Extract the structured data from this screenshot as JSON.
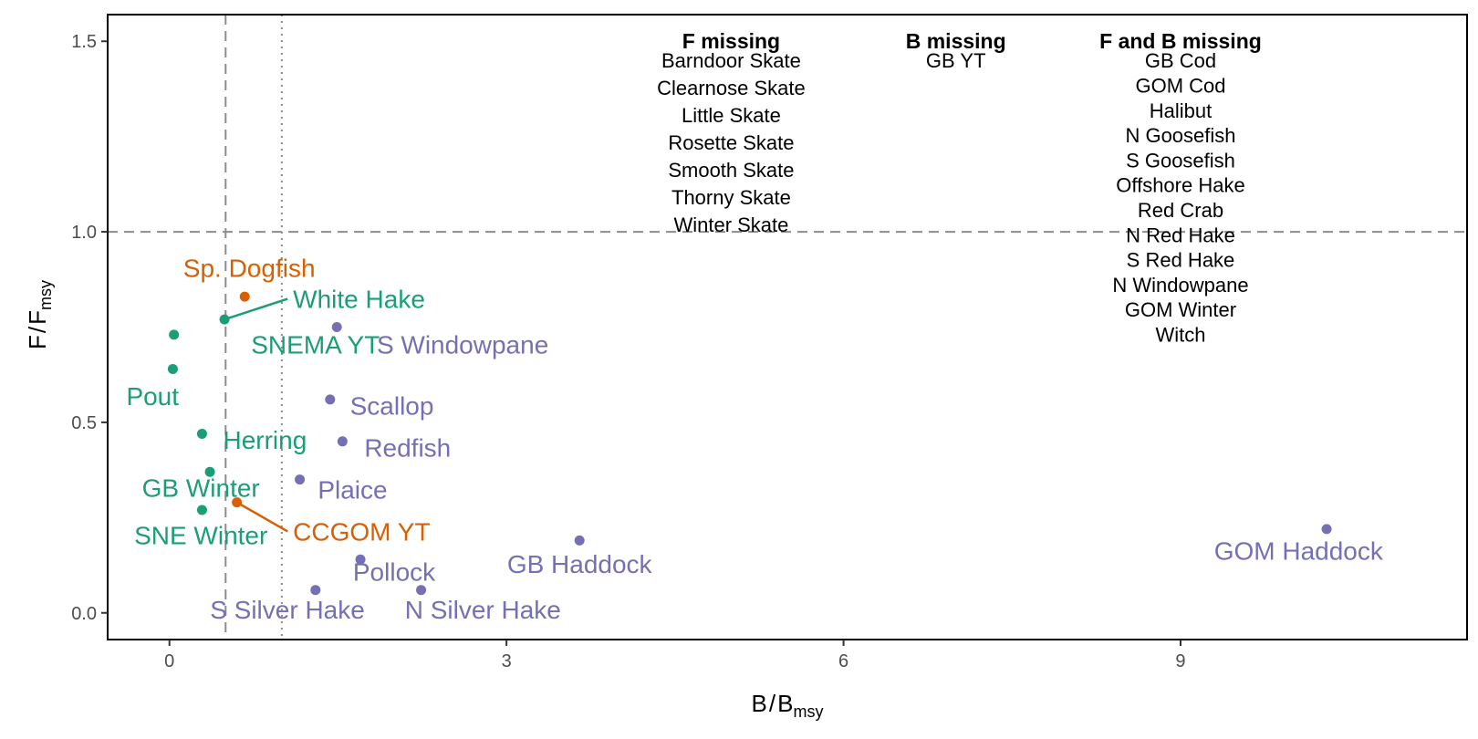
{
  "chart_data": {
    "type": "scatter",
    "xlabel": {
      "main": "B",
      "slash": "/",
      "base": "B",
      "sub": "msy"
    },
    "ylabel": {
      "main": "F",
      "slash": "/",
      "base": "F",
      "sub": "msy"
    },
    "xlim": [
      -0.55,
      11.55
    ],
    "ylim": [
      -0.07,
      1.57
    ],
    "xticks": [
      0,
      3,
      6,
      9
    ],
    "xtick_labels": [
      "0",
      "3",
      "6",
      "9"
    ],
    "yticks": [
      0.0,
      0.5,
      1.0,
      1.5
    ],
    "ytick_labels": [
      "0.0",
      "0.5",
      "1.0",
      "1.5"
    ],
    "grid": false,
    "legend": "none",
    "reference_lines": [
      {
        "axis": "x",
        "value": 0.5,
        "style": "dashed",
        "color": "#8c8c8c"
      },
      {
        "axis": "x",
        "value": 1.0,
        "style": "dotted",
        "color": "#8c8c8c"
      },
      {
        "axis": "y",
        "value": 1.0,
        "style": "dashed",
        "color": "#8c8c8c"
      }
    ],
    "group_colors": {
      "green": "#1b9e77",
      "orange": "#d95f02",
      "purple": "#7570b3"
    },
    "points": [
      {
        "name": "Sp. Dogfish",
        "x": 0.67,
        "y": 0.83,
        "group": "orange",
        "label_x": 0.71,
        "label_y": 0.882,
        "anchor": "middle",
        "leader": false
      },
      {
        "name": "White Hake",
        "x": 0.49,
        "y": 0.77,
        "group": "green",
        "label_x": 1.1,
        "label_y": 0.8,
        "anchor": "start",
        "leader": true
      },
      {
        "name": "SNEMA YT",
        "x": 0.04,
        "y": 0.73,
        "group": "green",
        "label_x": 1.3,
        "label_y": 0.68,
        "anchor": "middle",
        "leader": false
      },
      {
        "name": "Pout",
        "x": 0.03,
        "y": 0.64,
        "group": "green",
        "label_x": -0.15,
        "label_y": 0.545,
        "anchor": "middle",
        "leader": false
      },
      {
        "name": "Herring",
        "x": 0.29,
        "y": 0.47,
        "group": "green",
        "label_x": 0.85,
        "label_y": 0.43,
        "anchor": "middle",
        "leader": false
      },
      {
        "name": "GB Winter",
        "x": 0.36,
        "y": 0.37,
        "group": "green",
        "label_x": 0.28,
        "label_y": 0.305,
        "anchor": "middle",
        "leader": false
      },
      {
        "name": "SNE Winter",
        "x": 0.29,
        "y": 0.27,
        "group": "green",
        "label_x": 0.28,
        "label_y": 0.18,
        "anchor": "middle",
        "leader": false
      },
      {
        "name": "CCGOM YT",
        "x": 0.6,
        "y": 0.29,
        "group": "orange",
        "label_x": 1.1,
        "label_y": 0.19,
        "anchor": "start",
        "leader": true
      },
      {
        "name": "S Windowpane",
        "x": 1.49,
        "y": 0.75,
        "group": "purple",
        "label_x": 2.61,
        "label_y": 0.68,
        "anchor": "middle",
        "leader": false
      },
      {
        "name": "Scallop",
        "x": 1.43,
        "y": 0.56,
        "group": "purple",
        "label_x": 1.98,
        "label_y": 0.52,
        "anchor": "middle",
        "leader": false
      },
      {
        "name": "Redfish",
        "x": 1.54,
        "y": 0.45,
        "group": "purple",
        "label_x": 2.12,
        "label_y": 0.41,
        "anchor": "middle",
        "leader": false
      },
      {
        "name": "Plaice",
        "x": 1.16,
        "y": 0.35,
        "group": "purple",
        "label_x": 1.63,
        "label_y": 0.3,
        "anchor": "middle",
        "leader": false
      },
      {
        "name": "GB Haddock",
        "x": 3.65,
        "y": 0.19,
        "group": "purple",
        "label_x": 3.65,
        "label_y": 0.105,
        "anchor": "middle",
        "leader": false
      },
      {
        "name": "Pollock",
        "x": 1.7,
        "y": 0.14,
        "group": "purple",
        "label_x": 2.0,
        "label_y": 0.085,
        "anchor": "middle",
        "leader": false
      },
      {
        "name": "S Silver Hake",
        "x": 1.3,
        "y": 0.06,
        "group": "purple",
        "label_x": 1.05,
        "label_y": -0.015,
        "anchor": "middle",
        "leader": false
      },
      {
        "name": "N Silver Hake",
        "x": 2.24,
        "y": 0.06,
        "group": "purple",
        "label_x": 2.79,
        "label_y": -0.015,
        "anchor": "middle",
        "leader": false
      },
      {
        "name": "GOM Haddock",
        "x": 10.3,
        "y": 0.22,
        "group": "purple",
        "label_x": 10.05,
        "label_y": 0.14,
        "anchor": "middle",
        "leader": false
      }
    ],
    "tables": [
      {
        "title": "F missing",
        "x": 5.0,
        "items": [
          "Barndoor Skate",
          "Clearnose Skate",
          "Little Skate",
          "Rosette Skate",
          "Smooth Skate",
          "Thorny Skate",
          "Winter Skate"
        ]
      },
      {
        "title": "B missing",
        "x": 7.0,
        "items": [
          "GB YT"
        ]
      },
      {
        "title": "F and B missing",
        "x": 9.0,
        "items": [
          "GB Cod",
          "GOM Cod",
          "Halibut",
          "N Goosefish",
          "S Goosefish",
          "Offshore Hake",
          "Red Crab",
          "N Red Hake",
          "S Red Hake",
          "N Windowpane",
          "GOM Winter",
          "Witch"
        ]
      }
    ]
  }
}
